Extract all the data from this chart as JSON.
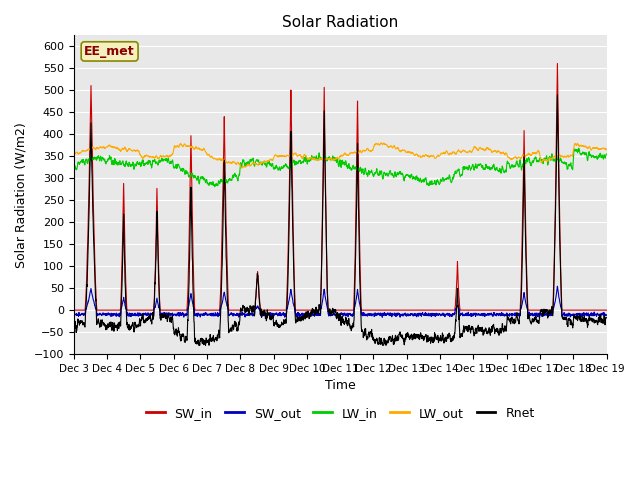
{
  "title": "Solar Radiation",
  "xlabel": "Time",
  "ylabel": "Solar Radiation (W/m2)",
  "ylim": [
    -100,
    625
  ],
  "yticks": [
    -100,
    -50,
    0,
    50,
    100,
    150,
    200,
    250,
    300,
    350,
    400,
    450,
    500,
    550,
    600
  ],
  "annotation_text": "EE_met",
  "legend_entries": [
    "SW_in",
    "SW_out",
    "LW_in",
    "LW_out",
    "Rnet"
  ],
  "line_colors": [
    "#cc0000",
    "#0000bb",
    "#00cc00",
    "#ffaa00",
    "#000000"
  ],
  "bg_color": "#e8e8e8",
  "n_days": 16,
  "ppd": 144,
  "start_day": 3,
  "sw_in_peaks": [
    515,
    290,
    275,
    400,
    440,
    90,
    505,
    515,
    480,
    0,
    0,
    110,
    0,
    410,
    570,
    0
  ],
  "sw_in_widths": [
    0.18,
    0.1,
    0.1,
    0.12,
    0.14,
    0.1,
    0.14,
    0.12,
    0.12,
    0,
    0,
    0.08,
    0,
    0.12,
    0.14,
    0
  ],
  "sw_in_centers": [
    0.52,
    0.5,
    0.5,
    0.52,
    0.52,
    0.52,
    0.52,
    0.52,
    0.52,
    0.5,
    0.5,
    0.52,
    0.5,
    0.52,
    0.52,
    0.5
  ],
  "lw_in_base": 325,
  "lw_out_base": 355,
  "night_rnet": -20
}
